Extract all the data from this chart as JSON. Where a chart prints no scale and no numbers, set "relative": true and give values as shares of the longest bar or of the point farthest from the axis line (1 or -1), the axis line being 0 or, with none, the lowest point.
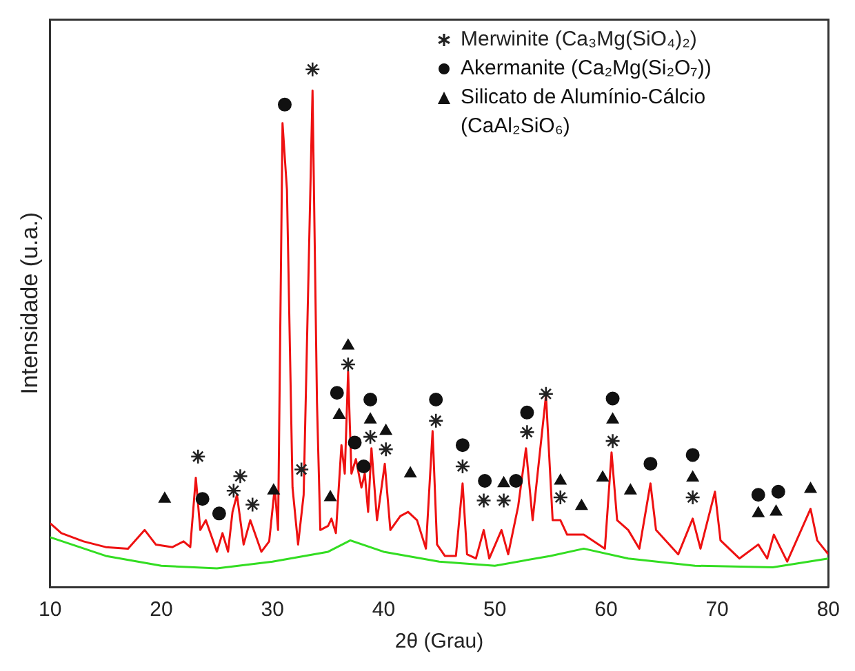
{
  "chart_data": {
    "type": "line",
    "relative": true,
    "xlabel": "2θ (Grau)",
    "ylabel": "Intensidade (u.a.)",
    "xlim": [
      10,
      80
    ],
    "xticks": [
      10,
      20,
      30,
      40,
      50,
      60,
      70,
      80
    ],
    "tick_labels": "x",
    "grid": false,
    "legend": "top right",
    "line_style": "solid",
    "marker": "none",
    "series": [
      {
        "color": "#ee1111",
        "x": [
          10,
          11,
          13,
          15,
          17,
          18.5,
          19.5,
          21,
          22,
          22.6,
          23.1,
          23.5,
          24,
          25,
          25.5,
          26,
          26.4,
          26.8,
          27.4,
          28,
          29,
          29.7,
          30.2,
          30.5,
          30.9,
          31.3,
          31.8,
          32.3,
          32.8,
          33.6,
          34,
          34.3,
          35,
          35.3,
          35.7,
          36.2,
          36.5,
          36.8,
          37.1,
          37.5,
          38,
          38.3,
          38.6,
          38.9,
          39.4,
          40.1,
          40.6,
          41.5,
          42.2,
          43,
          43.8,
          44.4,
          44.8,
          45.5,
          46.5,
          47.1,
          47.5,
          48.3,
          49,
          49.5,
          50.6,
          51.2,
          52.1,
          52.8,
          53.4,
          54.6,
          55.2,
          55.9,
          56.5,
          58,
          59.9,
          60.5,
          61,
          62,
          63,
          64,
          64.5,
          66.5,
          67.8,
          68.5,
          69.8,
          70.3,
          72,
          73.7,
          74.5,
          75.1,
          76.3,
          78.4,
          79,
          80
        ],
        "values": [
          0.123,
          0.104,
          0.088,
          0.077,
          0.074,
          0.11,
          0.082,
          0.077,
          0.088,
          0.077,
          0.211,
          0.11,
          0.129,
          0.068,
          0.104,
          0.068,
          0.145,
          0.178,
          0.082,
          0.129,
          0.068,
          0.088,
          0.192,
          0.11,
          0.896,
          0.767,
          0.192,
          0.082,
          0.178,
          0.959,
          0.356,
          0.11,
          0.118,
          0.132,
          0.104,
          0.274,
          0.219,
          0.416,
          0.219,
          0.247,
          0.192,
          0.219,
          0.145,
          0.268,
          0.129,
          0.238,
          0.11,
          0.137,
          0.145,
          0.129,
          0.074,
          0.301,
          0.082,
          0.06,
          0.06,
          0.2,
          0.063,
          0.055,
          0.11,
          0.055,
          0.11,
          0.063,
          0.156,
          0.268,
          0.129,
          0.37,
          0.129,
          0.129,
          0.101,
          0.101,
          0.074,
          0.26,
          0.129,
          0.11,
          0.074,
          0.2,
          0.11,
          0.063,
          0.132,
          0.074,
          0.184,
          0.09,
          0.055,
          0.082,
          0.055,
          0.101,
          0.049,
          0.151,
          0.09,
          0.063
        ]
      },
      {
        "color": "#33dd22",
        "x": [
          10,
          15,
          20,
          25,
          30,
          35,
          37,
          40,
          45,
          50,
          55,
          58,
          62,
          68,
          75,
          80
        ],
        "values": [
          0.096,
          0.06,
          0.041,
          0.036,
          0.049,
          0.068,
          0.09,
          0.068,
          0.049,
          0.041,
          0.06,
          0.074,
          0.055,
          0.041,
          0.038,
          0.055
        ]
      },
      {
        "type": "scatter",
        "marker": "cross",
        "name": "Merwinite (Ca₃Mg(SiO₄)₂)",
        "color": "#222222",
        "x": [
          23.3,
          26.5,
          27.1,
          28.2,
          32.6,
          33.6,
          36.8,
          38.8,
          40.2,
          44.7,
          47.1,
          49.0,
          50.8,
          52.9,
          54.6,
          55.9,
          60.6,
          67.8
        ],
        "values": [
          0.252,
          0.186,
          0.214,
          0.159,
          0.227,
          1.0,
          0.43,
          0.29,
          0.266,
          0.321,
          0.233,
          0.167,
          0.167,
          0.299,
          0.373,
          0.173,
          0.282,
          0.173
        ]
      },
      {
        "type": "scatter",
        "marker": "circle",
        "name": "Akermanite (Ca₂Mg(Si₂O₇))",
        "color": "#111111",
        "x": [
          23.7,
          25.2,
          31.1,
          35.8,
          37.4,
          38.2,
          38.8,
          44.7,
          47.1,
          49.1,
          51.9,
          52.9,
          60.6,
          64.0,
          67.8,
          73.7,
          75.5
        ],
        "values": [
          0.17,
          0.142,
          0.932,
          0.375,
          0.279,
          0.233,
          0.362,
          0.362,
          0.274,
          0.205,
          0.205,
          0.337,
          0.364,
          0.238,
          0.255,
          0.178,
          0.184
        ]
      },
      {
        "type": "scatter",
        "marker": "triangle",
        "name": "Silicato de Alumínio-Cálcio (CaAl₂SiO₆)",
        "color": "#111111",
        "x": [
          20.3,
          30.1,
          35.2,
          36.0,
          36.8,
          38.8,
          40.2,
          42.4,
          50.8,
          55.9,
          57.8,
          59.7,
          60.6,
          62.2,
          67.8,
          73.7,
          75.3,
          78.4
        ],
        "values": [
          0.17,
          0.186,
          0.173,
          0.332,
          0.466,
          0.323,
          0.301,
          0.219,
          0.2,
          0.205,
          0.156,
          0.211,
          0.323,
          0.186,
          0.211,
          0.142,
          0.145,
          0.189
        ]
      }
    ]
  }
}
